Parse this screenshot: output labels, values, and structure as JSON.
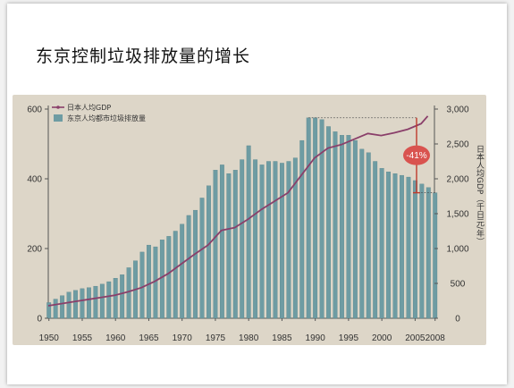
{
  "slide": {
    "title": "东京控制垃圾排放量的增长"
  },
  "colors": {
    "bar": "#6e9ca3",
    "line": "#8a3f6a",
    "badge": "#d9534f",
    "annotation": "#c0392b"
  },
  "chart_data": {
    "type": "bar",
    "title": "",
    "legend": {
      "position": "top-left",
      "entries": [
        "日本人均GDP",
        "东京人均都市垃圾排放量"
      ]
    },
    "x_tick_labels": [
      "1950",
      "1955",
      "1960",
      "1965",
      "1970",
      "1975",
      "1980",
      "1985",
      "1990",
      "1995",
      "2000",
      "2005",
      "2008"
    ],
    "y_left": {
      "ylim": [
        0,
        600
      ],
      "ticks": [
        "0",
        "200",
        "400",
        "600"
      ]
    },
    "y_right": {
      "label": "日本人均GDP（千日元/年）",
      "ylim": [
        0,
        3000
      ],
      "ticks": [
        "0",
        "500",
        "1,000",
        "1,500",
        "2,000",
        "2,500",
        "3,000"
      ]
    },
    "annotation": {
      "text": "-41%"
    },
    "series": [
      {
        "name": "东京人均都市垃圾排放量",
        "type": "bar",
        "axis": "left",
        "x": [
          1950,
          1951,
          1952,
          1953,
          1954,
          1955,
          1956,
          1957,
          1958,
          1959,
          1960,
          1961,
          1962,
          1963,
          1964,
          1965,
          1966,
          1967,
          1968,
          1969,
          1970,
          1971,
          1972,
          1973,
          1974,
          1975,
          1976,
          1977,
          1978,
          1979,
          1980,
          1981,
          1982,
          1983,
          1984,
          1985,
          1986,
          1987,
          1988,
          1989,
          1990,
          1991,
          1992,
          1993,
          1994,
          1995,
          1996,
          1997,
          1998,
          1999,
          2000,
          2001,
          2002,
          2003,
          2004,
          2005,
          2006,
          2007,
          2008
        ],
        "values": [
          45,
          55,
          65,
          75,
          80,
          85,
          88,
          92,
          98,
          105,
          115,
          125,
          145,
          165,
          190,
          210,
          205,
          225,
          235,
          250,
          270,
          295,
          310,
          345,
          380,
          425,
          440,
          415,
          425,
          455,
          495,
          455,
          440,
          450,
          450,
          445,
          450,
          460,
          510,
          575,
          575,
          570,
          550,
          535,
          525,
          525,
          510,
          485,
          475,
          450,
          430,
          420,
          415,
          410,
          405,
          395,
          385,
          375,
          360
        ]
      },
      {
        "name": "日本人均GDP",
        "type": "line",
        "axis": "right",
        "x": [
          1950,
          1952,
          1954,
          1956,
          1958,
          1960,
          1962,
          1964,
          1966,
          1968,
          1970,
          1972,
          1974,
          1976,
          1978,
          1980,
          1982,
          1984,
          1986,
          1988,
          1990,
          1992,
          1994,
          1996,
          1998,
          2000,
          2002,
          2004,
          2006,
          2007
        ],
        "values": [
          180,
          210,
          240,
          270,
          300,
          330,
          380,
          440,
          530,
          640,
          780,
          920,
          1050,
          1260,
          1300,
          1420,
          1560,
          1680,
          1800,
          2050,
          2300,
          2440,
          2490,
          2570,
          2650,
          2620,
          2660,
          2710,
          2790,
          2900
        ]
      }
    ]
  }
}
